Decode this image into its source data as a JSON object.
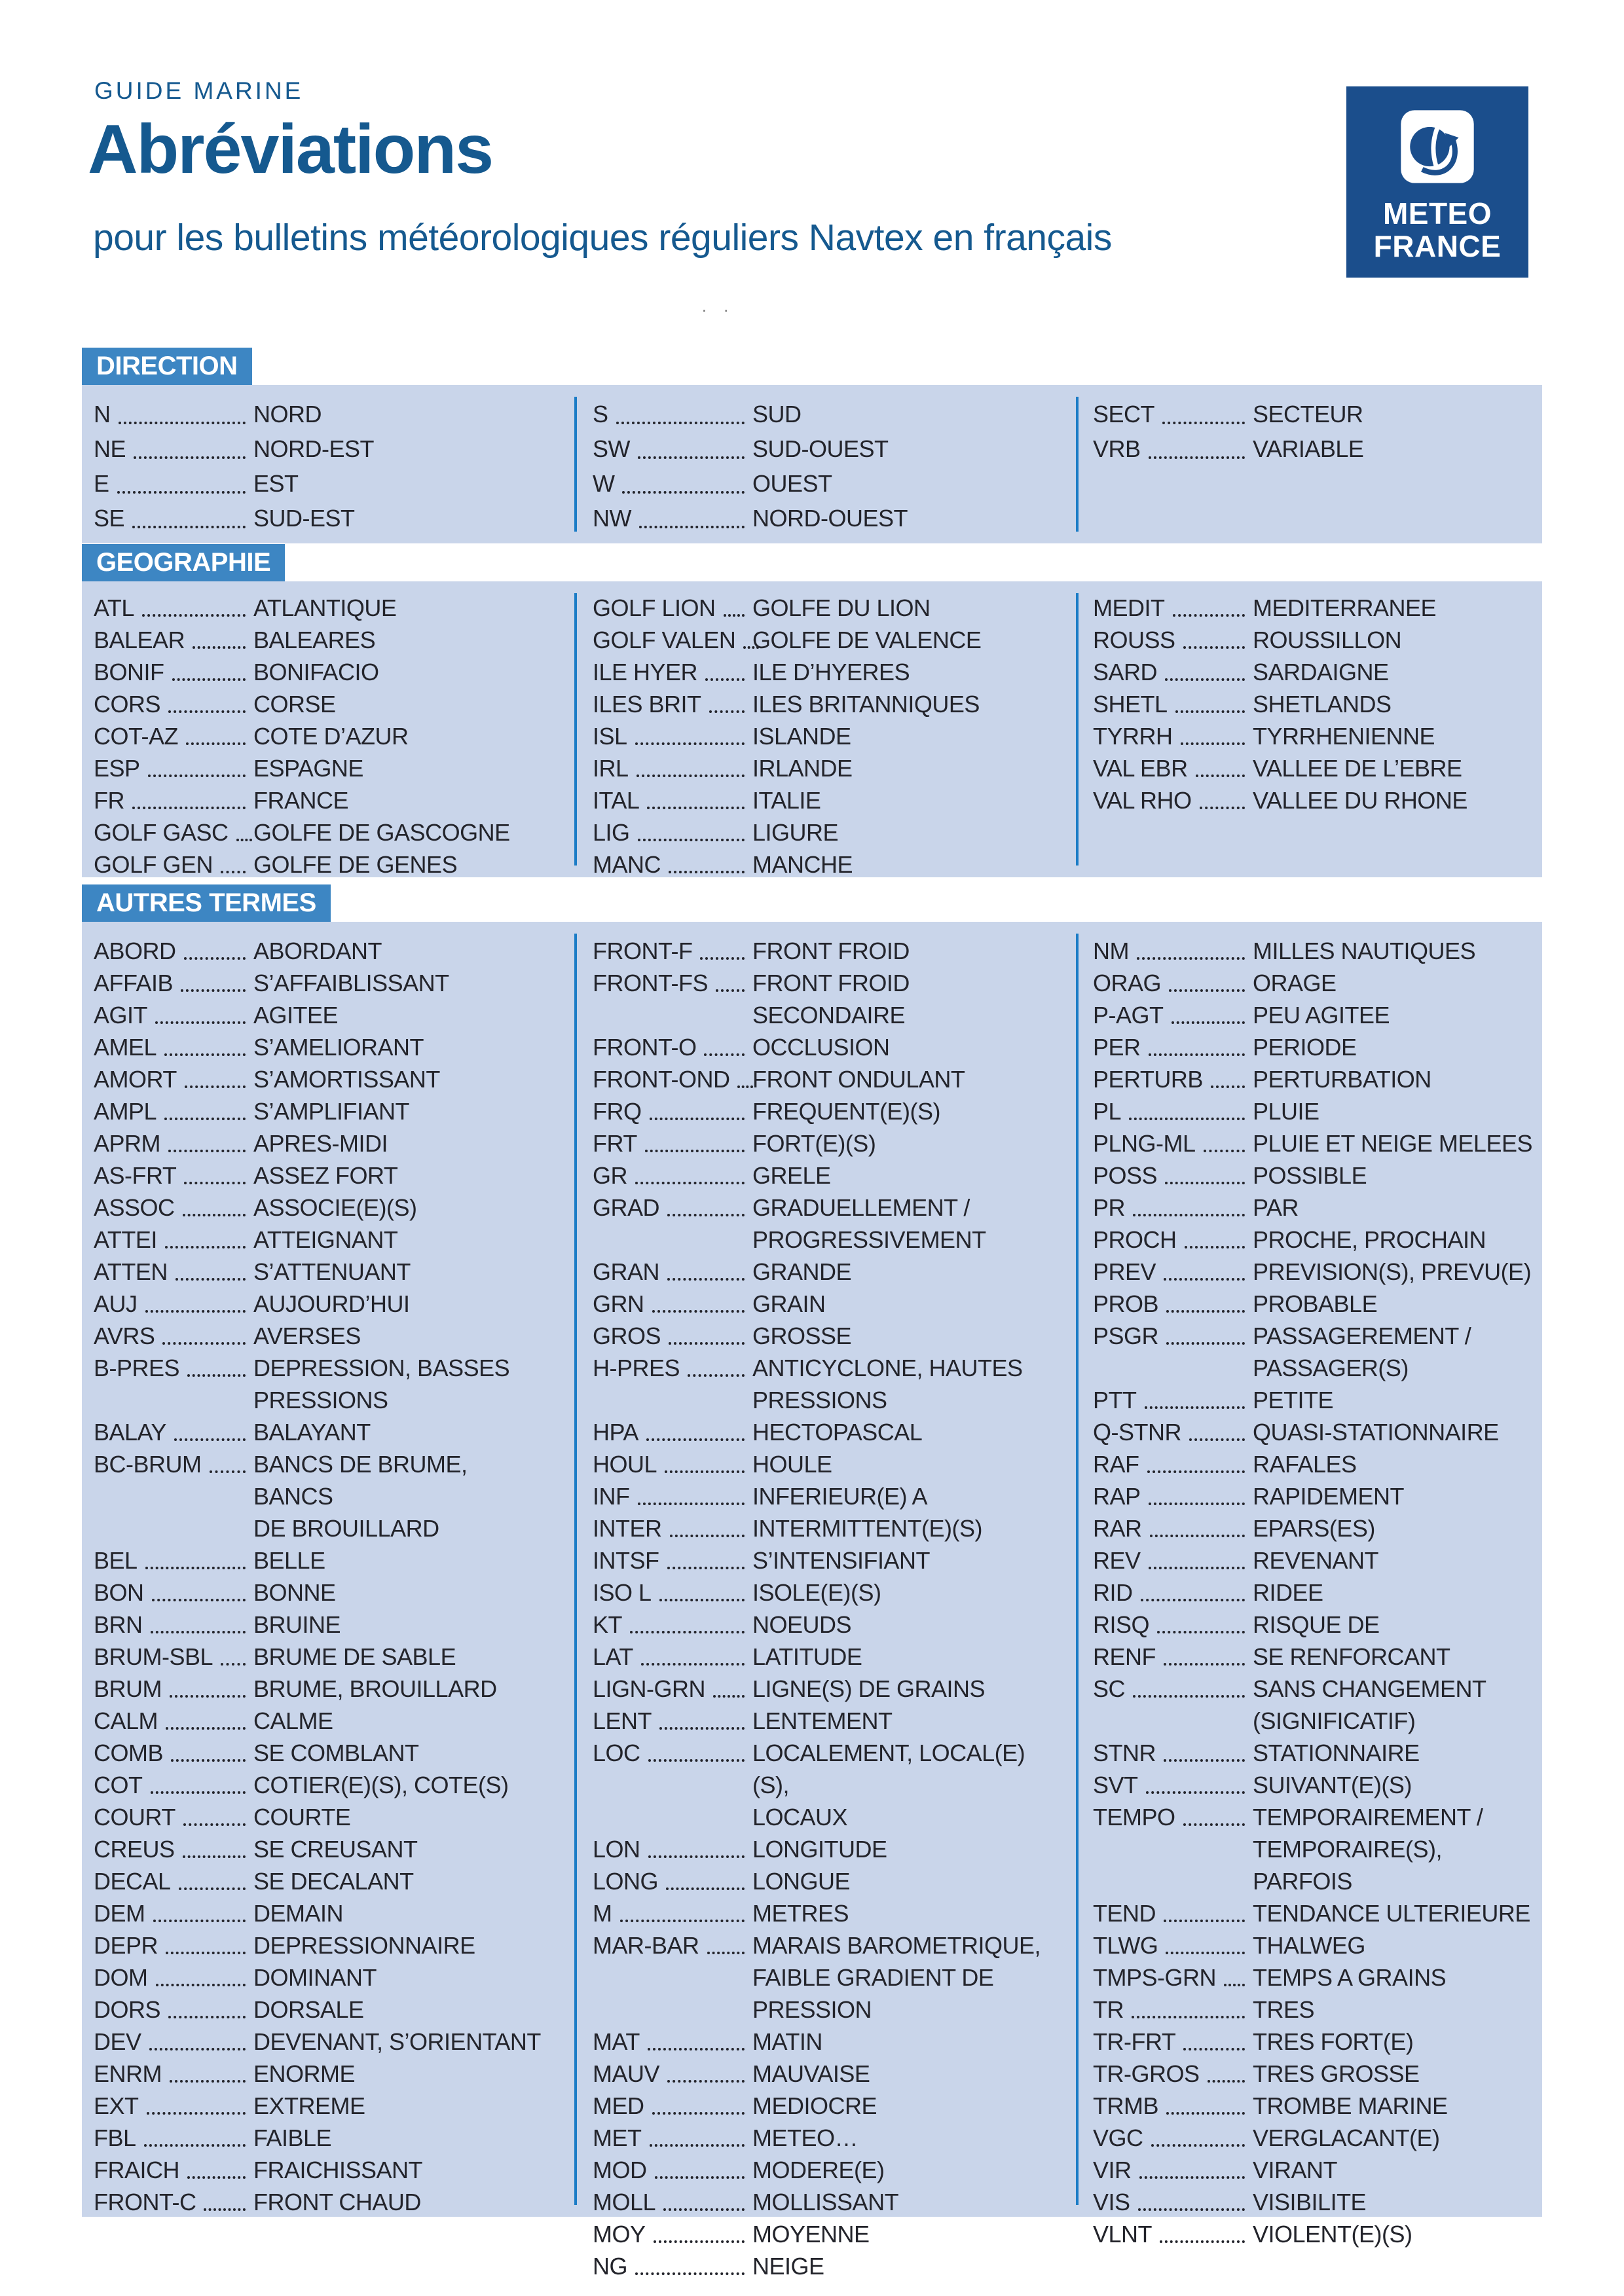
{
  "header": {
    "kicker": "GUIDE MARINE",
    "title": "Abréviations",
    "subtitle": "pour les bulletins météorologiques réguliers Navtex en français",
    "stray_marks": ". .",
    "logo": {
      "line1": "METEO",
      "line2": "FRANCE"
    }
  },
  "colors": {
    "accent_blue": "#3d86c3",
    "panel_blue": "#c9d5ea",
    "divider_blue": "#1b7cc6",
    "heading_blue": "#15598f",
    "logo_navy": "#1b4e8c",
    "text_dark": "#23242b"
  },
  "sections": [
    {
      "label": "DIRECTION",
      "columns": [
        [
          {
            "abbr": "N",
            "def": "NORD"
          },
          {
            "abbr": "NE",
            "def": "NORD-EST"
          },
          {
            "abbr": "E",
            "def": "EST"
          },
          {
            "abbr": "SE",
            "def": "SUD-EST"
          }
        ],
        [
          {
            "abbr": "S",
            "def": "SUD"
          },
          {
            "abbr": "SW",
            "def": "SUD-OUEST"
          },
          {
            "abbr": "W",
            "def": "OUEST"
          },
          {
            "abbr": "NW",
            "def": "NORD-OUEST"
          }
        ],
        [
          {
            "abbr": "SECT",
            "def": "SECTEUR"
          },
          {
            "abbr": "VRB",
            "def": "VARIABLE"
          }
        ]
      ]
    },
    {
      "label": "GEOGRAPHIE",
      "columns": [
        [
          {
            "abbr": "ATL",
            "def": "ATLANTIQUE"
          },
          {
            "abbr": "BALEAR",
            "def": "BALEARES"
          },
          {
            "abbr": "BONIF",
            "def": "BONIFACIO"
          },
          {
            "abbr": "CORS",
            "def": "CORSE"
          },
          {
            "abbr": "COT-AZ",
            "def": "COTE D’AZUR"
          },
          {
            "abbr": "ESP",
            "def": "ESPAGNE"
          },
          {
            "abbr": "FR",
            "def": "FRANCE"
          },
          {
            "abbr": "GOLF GASC",
            "def": "GOLFE DE GASCOGNE"
          },
          {
            "abbr": "GOLF GEN",
            "def": "GOLFE DE GENES"
          }
        ],
        [
          {
            "abbr": "GOLF LION",
            "def": "GOLFE DU LION"
          },
          {
            "abbr": "GOLF VALEN",
            "def": "GOLFE DE VALENCE"
          },
          {
            "abbr": "ILE HYER",
            "def": "ILE D’HYERES"
          },
          {
            "abbr": "ILES BRIT",
            "def": "ILES BRITANNIQUES"
          },
          {
            "abbr": "ISL",
            "def": "ISLANDE"
          },
          {
            "abbr": "IRL",
            "def": "IRLANDE"
          },
          {
            "abbr": "ITAL",
            "def": "ITALIE"
          },
          {
            "abbr": "LIG",
            "def": "LIGURE"
          },
          {
            "abbr": "MANC",
            "def": "MANCHE"
          }
        ],
        [
          {
            "abbr": "MEDIT",
            "def": "MEDITERRANEE"
          },
          {
            "abbr": "ROUSS",
            "def": "ROUSSILLON"
          },
          {
            "abbr": "SARD",
            "def": "SARDAIGNE"
          },
          {
            "abbr": "SHETL",
            "def": "SHETLANDS"
          },
          {
            "abbr": "TYRRH",
            "def": "TYRRHENIENNE"
          },
          {
            "abbr": "VAL EBR",
            "def": "VALLEE DE L’EBRE"
          },
          {
            "abbr": "VAL RHO",
            "def": "VALLEE DU RHONE"
          }
        ]
      ]
    },
    {
      "label": "AUTRES TERMES",
      "columns": [
        [
          {
            "abbr": "ABORD",
            "def": "ABORDANT"
          },
          {
            "abbr": "AFFAIB",
            "def": "S’AFFAIBLISSANT"
          },
          {
            "abbr": "AGIT",
            "def": "AGITEE"
          },
          {
            "abbr": "AMEL",
            "def": "S’AMELIORANT"
          },
          {
            "abbr": "AMORT",
            "def": "S’AMORTISSANT"
          },
          {
            "abbr": "AMPL",
            "def": "S’AMPLIFIANT"
          },
          {
            "abbr": "APRM",
            "def": "APRES-MIDI"
          },
          {
            "abbr": "AS-FRT",
            "def": "ASSEZ FORT"
          },
          {
            "abbr": "ASSOC",
            "def": "ASSOCIE(E)(S)"
          },
          {
            "abbr": "ATTEI",
            "def": "ATTEIGNANT"
          },
          {
            "abbr": "ATTEN",
            "def": "S’ATTENUANT"
          },
          {
            "abbr": "AUJ",
            "def": "AUJOURD’HUI"
          },
          {
            "abbr": "AVRS",
            "def": "AVERSES"
          },
          {
            "abbr": "B-PRES",
            "def": "DEPRESSION, BASSES\nPRESSIONS"
          },
          {
            "abbr": "BALAY",
            "def": "BALAYANT"
          },
          {
            "abbr": "BC-BRUM",
            "def": "BANCS DE BRUME, BANCS\nDE BROUILLARD"
          },
          {
            "abbr": "BEL",
            "def": "BELLE"
          },
          {
            "abbr": "BON",
            "def": "BONNE"
          },
          {
            "abbr": "BRN",
            "def": "BRUINE"
          },
          {
            "abbr": "BRUM-SBL",
            "def": "BRUME DE SABLE"
          },
          {
            "abbr": "BRUM",
            "def": "BRUME, BROUILLARD"
          },
          {
            "abbr": "CALM",
            "def": "CALME"
          },
          {
            "abbr": "COMB",
            "def": "SE COMBLANT"
          },
          {
            "abbr": "COT",
            "def": "COTIER(E)(S), COTE(S)"
          },
          {
            "abbr": "COURT",
            "def": "COURTE"
          },
          {
            "abbr": "CREUS",
            "def": "SE CREUSANT"
          },
          {
            "abbr": "DECAL",
            "def": "SE DECALANT"
          },
          {
            "abbr": "DEM",
            "def": "DEMAIN"
          },
          {
            "abbr": "DEPR",
            "def": "DEPRESSIONNAIRE"
          },
          {
            "abbr": "DOM",
            "def": "DOMINANT"
          },
          {
            "abbr": "DORS",
            "def": "DORSALE"
          },
          {
            "abbr": "DEV",
            "def": "DEVENANT, S’ORIENTANT"
          },
          {
            "abbr": "ENRM",
            "def": "ENORME"
          },
          {
            "abbr": "EXT",
            "def": "EXTREME"
          },
          {
            "abbr": "FBL",
            "def": "FAIBLE"
          },
          {
            "abbr": "FRAICH",
            "def": "FRAICHISSANT"
          },
          {
            "abbr": "FRONT-C",
            "def": "FRONT CHAUD"
          }
        ],
        [
          {
            "abbr": "FRONT-F",
            "def": "FRONT FROID"
          },
          {
            "abbr": "FRONT-FS",
            "def": "FRONT FROID SECONDAIRE"
          },
          {
            "abbr": "FRONT-O",
            "def": "OCCLUSION"
          },
          {
            "abbr": "FRONT-OND",
            "def": "FRONT ONDULANT"
          },
          {
            "abbr": "FRQ",
            "def": "FREQUENT(E)(S)"
          },
          {
            "abbr": "FRT",
            "def": "FORT(E)(S)"
          },
          {
            "abbr": "GR",
            "def": "GRELE"
          },
          {
            "abbr": "GRAD",
            "def": "GRADUELLEMENT /\nPROGRESSIVEMENT"
          },
          {
            "abbr": "GRAN",
            "def": "GRANDE"
          },
          {
            "abbr": "GRN",
            "def": "GRAIN"
          },
          {
            "abbr": "GROS",
            "def": "GROSSE"
          },
          {
            "abbr": "H-PRES",
            "def": "ANTICYCLONE, HAUTES\nPRESSIONS"
          },
          {
            "abbr": "HPA",
            "def": "HECTOPASCAL"
          },
          {
            "abbr": "HOUL",
            "def": "HOULE"
          },
          {
            "abbr": "INF",
            "def": "INFERIEUR(E) A"
          },
          {
            "abbr": "INTER",
            "def": "INTERMITTENT(E)(S)"
          },
          {
            "abbr": "INTSF",
            "def": "S’INTENSIFIANT"
          },
          {
            "abbr": "ISO L",
            "def": "ISOLE(E)(S)"
          },
          {
            "abbr": "KT",
            "def": "NOEUDS"
          },
          {
            "abbr": "LAT",
            "def": "LATITUDE"
          },
          {
            "abbr": "LIGN-GRN",
            "def": "LIGNE(S) DE GRAINS"
          },
          {
            "abbr": "LENT",
            "def": "LENTEMENT"
          },
          {
            "abbr": "LOC",
            "def": "LOCALEMENT, LOCAL(E)(S),\nLOCAUX"
          },
          {
            "abbr": "LON",
            "def": "LONGITUDE"
          },
          {
            "abbr": "LONG",
            "def": "LONGUE"
          },
          {
            "abbr": "M",
            "def": "METRES"
          },
          {
            "abbr": "MAR-BAR",
            "def": "MARAIS BAROMETRIQUE,\nFAIBLE GRADIENT DE PRESSION"
          },
          {
            "abbr": "MAT",
            "def": "MATIN"
          },
          {
            "abbr": "MAUV",
            "def": "MAUVAISE"
          },
          {
            "abbr": "MED",
            "def": "MEDIOCRE"
          },
          {
            "abbr": "MET",
            "def": "METEO…"
          },
          {
            "abbr": "MOD",
            "def": "MODERE(E)"
          },
          {
            "abbr": "MOLL",
            "def": "MOLLISSANT"
          },
          {
            "abbr": "MOY",
            "def": "MOYENNE"
          },
          {
            "abbr": "NG",
            "def": "NEIGE"
          }
        ],
        [
          {
            "abbr": "NM",
            "def": "MILLES NAUTIQUES"
          },
          {
            "abbr": "ORAG",
            "def": "ORAGE"
          },
          {
            "abbr": "P-AGT",
            "def": "PEU AGITEE"
          },
          {
            "abbr": "PER",
            "def": "PERIODE"
          },
          {
            "abbr": "PERTURB",
            "def": "PERTURBATION"
          },
          {
            "abbr": "PL",
            "def": "PLUIE"
          },
          {
            "abbr": "PLNG-ML",
            "def": "PLUIE ET NEIGE MELEES"
          },
          {
            "abbr": "POSS",
            "def": "POSSIBLE"
          },
          {
            "abbr": "PR",
            "def": "PAR"
          },
          {
            "abbr": "PROCH",
            "def": "PROCHE, PROCHAIN"
          },
          {
            "abbr": "PREV",
            "def": "PREVISION(S), PREVU(E)"
          },
          {
            "abbr": "PROB",
            "def": "PROBABLE"
          },
          {
            "abbr": "PSGR",
            "def": "PASSAGEREMENT / PASSAGER(S)"
          },
          {
            "abbr": "PTT",
            "def": "PETITE"
          },
          {
            "abbr": "Q-STNR",
            "def": "QUASI-STATIONNAIRE"
          },
          {
            "abbr": "RAF",
            "def": "RAFALES"
          },
          {
            "abbr": "RAP",
            "def": "RAPIDEMENT"
          },
          {
            "abbr": "RAR",
            "def": "EPARS(ES)"
          },
          {
            "abbr": "REV",
            "def": "REVENANT"
          },
          {
            "abbr": "RID",
            "def": "RIDEE"
          },
          {
            "abbr": "RISQ",
            "def": "RISQUE DE"
          },
          {
            "abbr": "RENF",
            "def": "SE RENFORCANT"
          },
          {
            "abbr": "SC",
            "def": "SANS CHANGEMENT\n(SIGNIFICATIF)"
          },
          {
            "abbr": "STNR",
            "def": "STATIONNAIRE"
          },
          {
            "abbr": "SVT",
            "def": "SUIVANT(E)(S)"
          },
          {
            "abbr": "TEMPO",
            "def": "TEMPORAIREMENT /\nTEMPORAIRE(S), PARFOIS"
          },
          {
            "abbr": "TEND",
            "def": "TENDANCE ULTERIEURE"
          },
          {
            "abbr": "TLWG",
            "def": "THALWEG"
          },
          {
            "abbr": "TMPS-GRN",
            "def": "TEMPS A GRAINS"
          },
          {
            "abbr": "TR",
            "def": "TRES"
          },
          {
            "abbr": "TR-FRT",
            "def": "TRES FORT(E)"
          },
          {
            "abbr": "TR-GROS",
            "def": "TRES GROSSE"
          },
          {
            "abbr": "TRMB",
            "def": "TROMBE MARINE"
          },
          {
            "abbr": "VGC",
            "def": "VERGLACANT(E)"
          },
          {
            "abbr": "VIR",
            "def": "VIRANT"
          },
          {
            "abbr": "VIS",
            "def": "VISIBILITE"
          },
          {
            "abbr": "VLNT",
            "def": "VIOLENT(E)(S)"
          }
        ]
      ]
    }
  ]
}
